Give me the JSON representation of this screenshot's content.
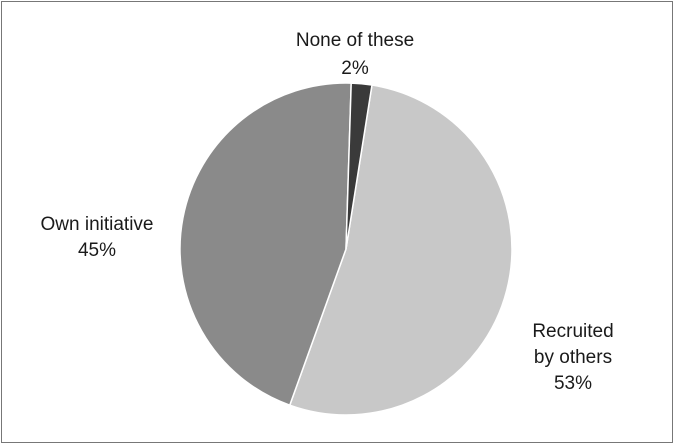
{
  "chart_data": {
    "type": "pie",
    "slices": [
      {
        "label": "Recruited by others",
        "label_lines": [
          "Recruited",
          "by others"
        ],
        "value": 53,
        "value_text": "53%",
        "color": "#c8c8c8"
      },
      {
        "label": "Own initiative",
        "label_lines": [
          "Own initiative"
        ],
        "value": 45,
        "value_text": "45%",
        "color": "#8a8a8a"
      },
      {
        "label": "None of these",
        "label_lines": [
          "None of these"
        ],
        "value": 2,
        "value_text": "2%",
        "color": "#3a3a3a"
      }
    ],
    "legend": "none",
    "data_labels": "outside"
  }
}
